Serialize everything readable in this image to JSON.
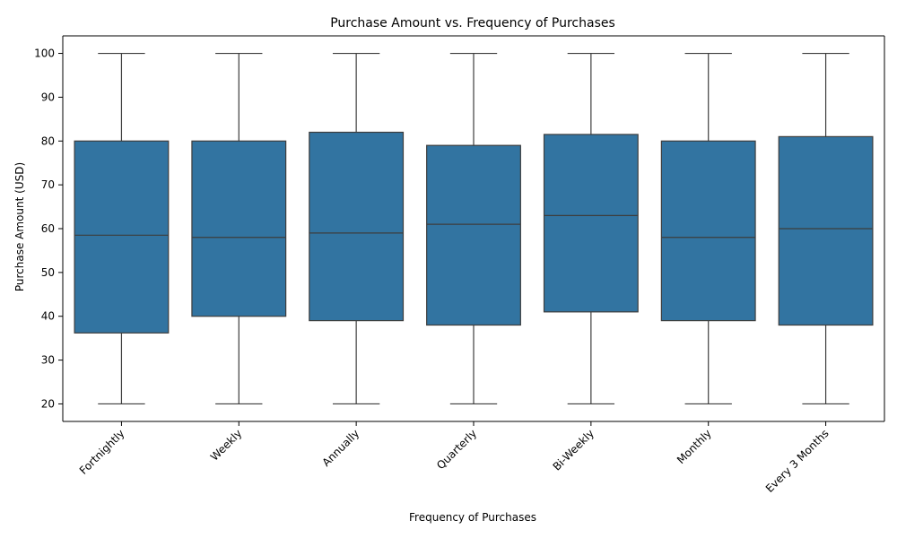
{
  "chart_data": {
    "type": "box",
    "title": "Purchase Amount vs. Frequency of Purchases",
    "xlabel": "Frequency of Purchases",
    "ylabel": "Purchase Amount (USD)",
    "ylim": [
      16,
      104
    ],
    "yticks": [
      20,
      30,
      40,
      50,
      60,
      70,
      80,
      90,
      100
    ],
    "box_color": "#3274a1",
    "line_color": "#3d3d3d",
    "grid": false,
    "categories": [
      "Fortnightly",
      "Weekly",
      "Annually",
      "Quarterly",
      "Bi-Weekly",
      "Monthly",
      "Every 3 Months"
    ],
    "boxes": [
      {
        "category": "Fortnightly",
        "min": 20,
        "q1": 36.2,
        "median": 58.5,
        "q3": 80,
        "max": 100
      },
      {
        "category": "Weekly",
        "min": 20,
        "q1": 40,
        "median": 58,
        "q3": 80,
        "max": 100
      },
      {
        "category": "Annually",
        "min": 20,
        "q1": 39,
        "median": 59,
        "q3": 82,
        "max": 100
      },
      {
        "category": "Quarterly",
        "min": 20,
        "q1": 38,
        "median": 61,
        "q3": 79,
        "max": 100
      },
      {
        "category": "Bi-Weekly",
        "min": 20,
        "q1": 41,
        "median": 63,
        "q3": 81.5,
        "max": 100
      },
      {
        "category": "Monthly",
        "min": 20,
        "q1": 39,
        "median": 58,
        "q3": 80,
        "max": 100
      },
      {
        "category": "Every 3 Months",
        "min": 20,
        "q1": 38,
        "median": 60,
        "q3": 81,
        "max": 100
      }
    ]
  }
}
